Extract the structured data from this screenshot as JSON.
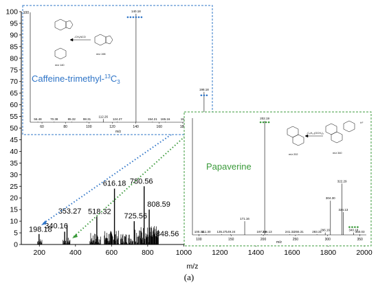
{
  "chart_data": [
    {
      "type": "bar",
      "xlabel": "m/z",
      "xlim": [
        100,
        2000
      ],
      "ylim": [
        0,
        100
      ],
      "x_ticks": [
        "200",
        "400",
        "600",
        "800",
        "1000",
        "1200",
        "1400",
        "1600",
        "1800",
        "2000"
      ],
      "y_ticks": [
        "0",
        "5",
        "10",
        "15",
        "20",
        "25",
        "30",
        "35",
        "40",
        "45",
        "50",
        "55",
        "60",
        "65",
        "70",
        "75",
        "80",
        "85",
        "90",
        "95",
        "100"
      ],
      "peaks": [
        {
          "mz": 198.18,
          "intensity": 4.5,
          "label": "198.18"
        },
        {
          "mz": 340.16,
          "intensity": 5.5,
          "label": "340.16"
        },
        {
          "mz": 353.27,
          "intensity": 8.5,
          "label": "353.27"
        },
        {
          "mz": 518.32,
          "intensity": 12,
          "label": "518.32"
        },
        {
          "mz": 616.18,
          "intensity": 24,
          "label": "616.18"
        },
        {
          "mz": 725.56,
          "intensity": 10,
          "label": "725.56"
        },
        {
          "mz": 780.56,
          "intensity": 25,
          "label": "780.56"
        },
        {
          "mz": 808.59,
          "intensity": 15,
          "label": "808.59"
        },
        {
          "mz": 848.56,
          "intensity": 3.5,
          "label": "848.56"
        }
      ]
    },
    {
      "type": "bar",
      "name_label": "Caffeine-trimethyl-",
      "name_sup": "13",
      "name_tail": "C",
      "name_sub": "3",
      "xlabel": "m/z",
      "xlim": [
        50,
        200
      ],
      "x_ticks": [
        "60",
        "80",
        "100",
        "120",
        "140",
        "160",
        "180",
        "200"
      ],
      "y_ticks": [
        "100"
      ],
      "peaks": [
        {
          "mz": 56.48,
          "intensity": 0.5,
          "label": "56.48"
        },
        {
          "mz": 70.38,
          "intensity": 0.5,
          "label": "70.38"
        },
        {
          "mz": 85.32,
          "intensity": 0.5,
          "label": "85.32"
        },
        {
          "mz": 98.31,
          "intensity": 0.5,
          "label": "98.31"
        },
        {
          "mz": 112.26,
          "intensity": 3,
          "label": "112.26"
        },
        {
          "mz": 124.27,
          "intensity": 0.5,
          "label": "124.27"
        },
        {
          "mz": 140.18,
          "intensity": 100,
          "label": "140.18"
        },
        {
          "mz": 154.21,
          "intensity": 0.5,
          "label": "154.21"
        },
        {
          "mz": 165.16,
          "intensity": 0.5,
          "label": "165.16"
        },
        {
          "mz": 182.21,
          "intensity": 0.5,
          "label": "182.21"
        },
        {
          "mz": 196.2,
          "intensity": 0.5,
          "label": "196.20"
        },
        {
          "mz": 198.18,
          "intensity": 28,
          "label": "198.18"
        }
      ],
      "structure_labels": [
        "m/z 140",
        "m/z 198",
        "-CH₃NCO"
      ]
    },
    {
      "type": "bar",
      "name_label": "Papaverine",
      "xlabel": "m/z",
      "xlim": [
        90,
        360
      ],
      "x_ticks": [
        "100",
        "150",
        "200",
        "250",
        "300",
        "350"
      ],
      "peaks": [
        {
          "mz": 100.34,
          "intensity": 0.5,
          "label": "100.34"
        },
        {
          "mz": 111.3,
          "intensity": 0.5,
          "label": "111.30"
        },
        {
          "mz": 135.27,
          "intensity": 0.5,
          "label": "135.27"
        },
        {
          "mz": 149.24,
          "intensity": 0.5,
          "label": "149.24"
        },
        {
          "mz": 171.16,
          "intensity": 12,
          "label": "171.16"
        },
        {
          "mz": 197.16,
          "intensity": 0.5,
          "label": "197.16"
        },
        {
          "mz": 202.19,
          "intensity": 100,
          "label": "202.19"
        },
        {
          "mz": 206.13,
          "intensity": 0.5,
          "label": "206.13"
        },
        {
          "mz": 241.32,
          "intensity": 0.5,
          "label": "241.32"
        },
        {
          "mz": 255.31,
          "intensity": 0.5,
          "label": "255.31"
        },
        {
          "mz": 283.31,
          "intensity": 0.5,
          "label": "283.31"
        },
        {
          "mz": 296.16,
          "intensity": 2,
          "label": "296.16"
        },
        {
          "mz": 304.3,
          "intensity": 30,
          "label": "304.30"
        },
        {
          "mz": 322.29,
          "intensity": 45,
          "label": "322.29"
        },
        {
          "mz": 324.13,
          "intensity": 20,
          "label": "324.13"
        },
        {
          "mz": 340.18,
          "intensity": 2,
          "label": "340.18"
        },
        {
          "mz": 350.03,
          "intensity": 0.5,
          "label": "350.03"
        }
      ],
      "structure_labels": [
        "m/z 202",
        "m/z 340",
        "-C₉H₁₀(OCH₃)₂",
        "H⁺"
      ]
    }
  ],
  "caption": "(a)",
  "colors": {
    "caffeine": "#2e74c7",
    "papaverine": "#3a9a3a",
    "bars": "#000000"
  }
}
